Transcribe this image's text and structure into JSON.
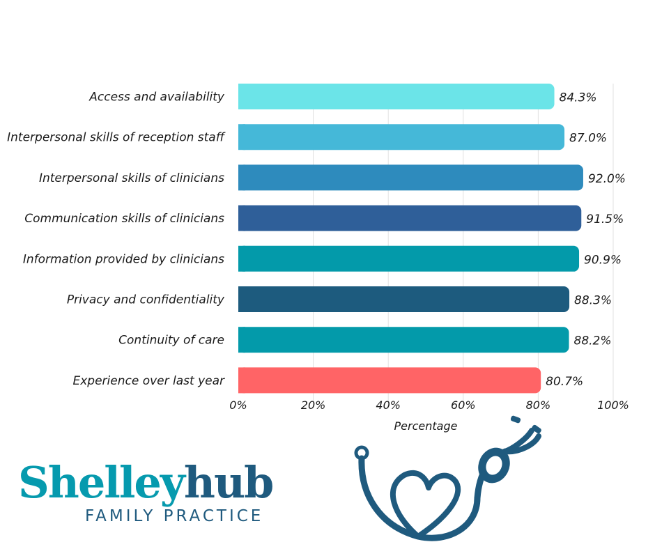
{
  "chart_data": {
    "type": "bar",
    "orientation": "horizontal",
    "categories": [
      "Access and availability",
      "Interpersonal skills of reception staff",
      "Interpersonal skills of clinicians",
      "Communication skills of clinicians",
      "Information provided by clinicians",
      "Privacy and confidentiality",
      "Continuity of care",
      "Experience over last year"
    ],
    "values": [
      84.3,
      87.0,
      92.0,
      91.5,
      90.9,
      88.3,
      88.2,
      80.7
    ],
    "value_labels": [
      "84.3%",
      "87.0%",
      "92.0%",
      "91.5%",
      "90.9%",
      "88.3%",
      "88.2%",
      "80.7%"
    ],
    "colors": [
      "#6be4e8",
      "#45b8d8",
      "#2e8bbd",
      "#2f5f99",
      "#039aaa",
      "#1d5b7e",
      "#039aaa",
      "#ff6466"
    ],
    "xlim": [
      0,
      100
    ],
    "x_ticks": [
      "0%",
      "20%",
      "40%",
      "60%",
      "80%",
      "100%"
    ],
    "xlabel": "Percentage",
    "ylabel": "",
    "title": "",
    "grid": true
  },
  "logo": {
    "brand_part1": "Shelley",
    "brand_part2": "hub",
    "tagline": "FAMILY PRACTICE",
    "primary_color": "#069aae",
    "secondary_color": "#1f5a7e"
  },
  "decoration": {
    "icon": "stethoscope-heart-icon",
    "color": "#1f5a7e"
  }
}
